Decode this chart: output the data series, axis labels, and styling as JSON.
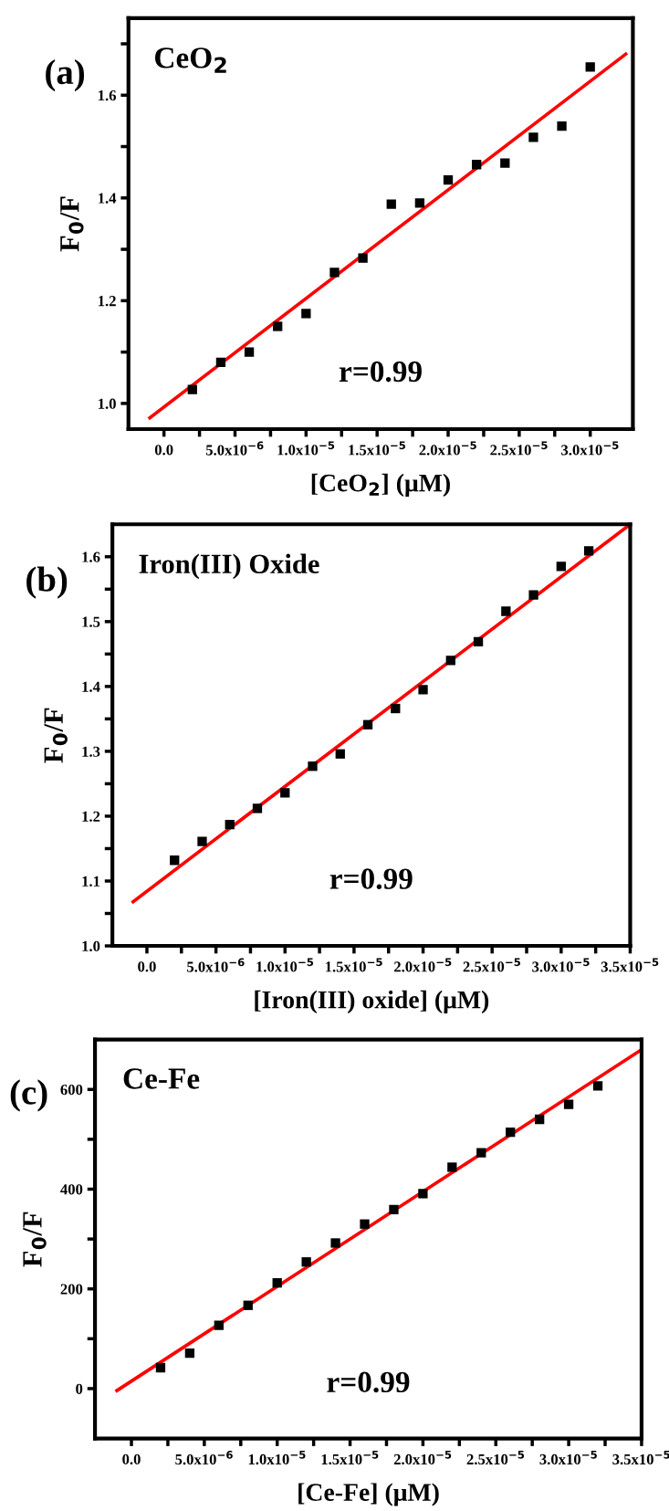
{
  "chart_data": [
    {
      "type": "scatter",
      "title": "CeO$_{2}$",
      "xlabel": "[CeO$_{2}$] (μM)",
      "ylabel": "F$_{0}$/F",
      "annotations": [
        "(a)",
        "r=0.99"
      ],
      "marker": "square",
      "grid": false,
      "xlim": [
        -2.5e-06,
        3.3e-05
      ],
      "ylim": [
        0.95,
        1.75
      ],
      "xticks": [
        {
          "value": 0,
          "label": "0.0"
        },
        {
          "value": 2.5e-06,
          "label": null
        },
        {
          "value": 5e-06,
          "label": "5.0x10$^{−6}$"
        },
        {
          "value": 7.5e-06,
          "label": null
        },
        {
          "value": 1e-05,
          "label": "1.0x10$^{−5}$"
        },
        {
          "value": 1.25e-05,
          "label": null
        },
        {
          "value": 1.5e-05,
          "label": "1.5x10$^{−5}$"
        },
        {
          "value": 1.75e-05,
          "label": null
        },
        {
          "value": 2e-05,
          "label": "2.0x10$^{−5}$"
        },
        {
          "value": 2.25e-05,
          "label": null
        },
        {
          "value": 2.5e-05,
          "label": "2.5x10$^{−5}$"
        },
        {
          "value": 2.75e-05,
          "label": null
        },
        {
          "value": 3e-05,
          "label": "3.0x10$^{−5}$"
        }
      ],
      "yticks": [
        {
          "value": 1.0,
          "label": "1.0"
        },
        {
          "value": 1.1,
          "label": null
        },
        {
          "value": 1.2,
          "label": "1.2"
        },
        {
          "value": 1.3,
          "label": null
        },
        {
          "value": 1.4,
          "label": "1.4"
        },
        {
          "value": 1.5,
          "label": null
        },
        {
          "value": 1.6,
          "label": "1.6"
        },
        {
          "value": 1.7,
          "label": null
        }
      ],
      "series": [
        {
          "color": "#000000",
          "x": [
            2e-06,
            4e-06,
            6e-06,
            8e-06,
            1e-05,
            1.2e-05,
            1.4e-05,
            1.6e-05,
            1.8e-05,
            2e-05,
            2.2e-05,
            2.4e-05,
            2.6e-05,
            2.8e-05,
            3e-05
          ],
          "values": [
            1.027,
            1.08,
            1.1,
            1.15,
            1.175,
            1.255,
            1.283,
            1.388,
            1.39,
            1.435,
            1.465,
            1.468,
            1.518,
            1.54,
            1.655
          ]
        },
        {
          "type": "line",
          "marker": "none",
          "color": "#ff0000",
          "x": [
            -1e-06,
            3.25e-05
          ],
          "values": [
            0.972,
            1.68
          ]
        }
      ]
    },
    {
      "type": "scatter",
      "title": "Iron(III) Oxide",
      "xlabel": "[Iron(III) oxide] (μM)",
      "ylabel": "F$_{0}$/F",
      "annotations": [
        "(b)",
        "r=0.99"
      ],
      "marker": "square",
      "grid": false,
      "xlim": [
        -2.5e-06,
        3.5e-05
      ],
      "ylim": [
        1.0,
        1.65
      ],
      "xticks": [
        {
          "value": 0,
          "label": "0.0"
        },
        {
          "value": 2.5e-06,
          "label": null
        },
        {
          "value": 5e-06,
          "label": "5.0x10$^{−6}$"
        },
        {
          "value": 7.5e-06,
          "label": null
        },
        {
          "value": 1e-05,
          "label": "1.0x10$^{−5}$"
        },
        {
          "value": 1.25e-05,
          "label": null
        },
        {
          "value": 1.5e-05,
          "label": "1.5x10$^{−5}$"
        },
        {
          "value": 1.75e-05,
          "label": null
        },
        {
          "value": 2e-05,
          "label": "2.0x10$^{−5}$"
        },
        {
          "value": 2.25e-05,
          "label": null
        },
        {
          "value": 2.5e-05,
          "label": "2.5x10$^{−5}$"
        },
        {
          "value": 2.75e-05,
          "label": null
        },
        {
          "value": 3e-05,
          "label": "3.0x10$^{−5}$"
        },
        {
          "value": 3.25e-05,
          "label": null
        },
        {
          "value": 3.5e-05,
          "label": "3.5x10$^{−5}$"
        }
      ],
      "yticks": [
        {
          "value": 1.0,
          "label": "1.0"
        },
        {
          "value": 1.05,
          "label": null
        },
        {
          "value": 1.1,
          "label": "1.1"
        },
        {
          "value": 1.15,
          "label": null
        },
        {
          "value": 1.2,
          "label": "1.2"
        },
        {
          "value": 1.25,
          "label": null
        },
        {
          "value": 1.3,
          "label": "1.3"
        },
        {
          "value": 1.35,
          "label": null
        },
        {
          "value": 1.4,
          "label": "1.4"
        },
        {
          "value": 1.45,
          "label": null
        },
        {
          "value": 1.5,
          "label": "1.5"
        },
        {
          "value": 1.55,
          "label": null
        },
        {
          "value": 1.6,
          "label": "1.6"
        }
      ],
      "series": [
        {
          "color": "#000000",
          "x": [
            2e-06,
            4e-06,
            6e-06,
            8e-06,
            1e-05,
            1.2e-05,
            1.4e-05,
            1.6e-05,
            1.8e-05,
            2e-05,
            2.2e-05,
            2.4e-05,
            2.6e-05,
            2.8e-05,
            3e-05,
            3.2e-05
          ],
          "values": [
            1.132,
            1.161,
            1.187,
            1.212,
            1.236,
            1.277,
            1.296,
            1.341,
            1.366,
            1.395,
            1.44,
            1.469,
            1.516,
            1.541,
            1.585,
            1.609
          ]
        },
        {
          "type": "line",
          "marker": "none",
          "color": "#ff0000",
          "x": [
            -1e-06,
            3.5e-05
          ],
          "values": [
            1.068,
            1.65
          ]
        }
      ]
    },
    {
      "type": "scatter",
      "title": "Ce-Fe",
      "xlabel": "[Ce-Fe] (μM)",
      "ylabel": "F$_{0}$/F",
      "annotations": [
        "(c)",
        "r=0.99"
      ],
      "marker": "square",
      "grid": false,
      "xlim": [
        -2.5e-06,
        3.5e-05
      ],
      "ylim": [
        -100,
        700
      ],
      "xticks": [
        {
          "value": 0,
          "label": "0.0"
        },
        {
          "value": 2.5e-06,
          "label": null
        },
        {
          "value": 5e-06,
          "label": "5.0x10$^{−6}$"
        },
        {
          "value": 7.5e-06,
          "label": null
        },
        {
          "value": 1e-05,
          "label": "1.0x10$^{−5}$"
        },
        {
          "value": 1.25e-05,
          "label": null
        },
        {
          "value": 1.5e-05,
          "label": "1.5x10$^{−5}$"
        },
        {
          "value": 1.75e-05,
          "label": null
        },
        {
          "value": 2e-05,
          "label": "2.0x10$^{−5}$"
        },
        {
          "value": 2.25e-05,
          "label": null
        },
        {
          "value": 2.5e-05,
          "label": "2.5x10$^{−5}$"
        },
        {
          "value": 2.75e-05,
          "label": null
        },
        {
          "value": 3e-05,
          "label": "3.0x10$^{−5}$"
        },
        {
          "value": 3.25e-05,
          "label": null
        },
        {
          "value": 3.5e-05,
          "label": "3.5x10$^{−5}$"
        }
      ],
      "yticks": [
        {
          "value": 0,
          "label": "0"
        },
        {
          "value": 100,
          "label": null
        },
        {
          "value": 200,
          "label": "200"
        },
        {
          "value": 300,
          "label": null
        },
        {
          "value": 400,
          "label": "400"
        },
        {
          "value": 500,
          "label": null
        },
        {
          "value": 600,
          "label": "600"
        }
      ],
      "series": [
        {
          "color": "#000000",
          "x": [
            2e-06,
            4e-06,
            6e-06,
            8e-06,
            1e-05,
            1.2e-05,
            1.4e-05,
            1.6e-05,
            1.8e-05,
            2e-05,
            2.2e-05,
            2.4e-05,
            2.6e-05,
            2.8e-05,
            3e-05,
            3.2e-05
          ],
          "values": [
            42,
            71,
            127,
            167,
            212,
            254,
            292,
            330,
            359,
            391,
            444,
            473,
            514,
            540,
            570,
            607
          ]
        },
        {
          "type": "line",
          "marker": "none",
          "color": "#ff0000",
          "x": [
            -1e-06,
            3.5e-05
          ],
          "values": [
            -4,
            680
          ]
        }
      ]
    }
  ]
}
